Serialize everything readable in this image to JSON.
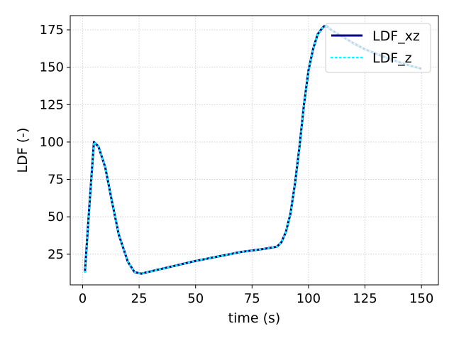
{
  "chart_data": {
    "type": "line",
    "xlabel": "time (s)",
    "ylabel": "LDF (-)",
    "xlim": [
      -5.5,
      157.5
    ],
    "ylim": [
      4.5,
      184.5
    ],
    "xticks": [
      0,
      25,
      50,
      75,
      100,
      125,
      150
    ],
    "yticks": [
      25,
      50,
      75,
      100,
      125,
      150,
      175
    ],
    "grid": true,
    "legend_position": "upper-right",
    "series": [
      {
        "name": "LDF_xz",
        "color": "#00007f",
        "style": "solid",
        "x": [
          1,
          3,
          5,
          7,
          10,
          13,
          16,
          20,
          23,
          26,
          30,
          40,
          50,
          60,
          70,
          80,
          86,
          88,
          90,
          92,
          94,
          96,
          98,
          100,
          102,
          104,
          106,
          107,
          108,
          110,
          115,
          120,
          125,
          130,
          135,
          140,
          145,
          150
        ],
        "y": [
          13,
          58,
          100,
          97,
          83,
          60,
          38,
          20,
          13,
          12,
          13.5,
          17,
          20.5,
          23.5,
          26.5,
          28.5,
          30,
          33,
          40,
          52,
          72,
          97,
          125,
          148,
          162,
          172,
          176,
          177.5,
          177.5,
          175,
          170.5,
          166,
          162,
          159,
          156,
          153.5,
          151,
          149
        ]
      },
      {
        "name": "LDF_z",
        "color": "#00ffff",
        "style": "dotted",
        "x": [
          1,
          3,
          5,
          7,
          10,
          13,
          16,
          20,
          23,
          26,
          30,
          40,
          50,
          60,
          70,
          80,
          86,
          88,
          90,
          92,
          94,
          96,
          98,
          100,
          102,
          104,
          106,
          107,
          108,
          110,
          115,
          120,
          125,
          130,
          135,
          140,
          145,
          150
        ],
        "y": [
          13,
          58,
          100,
          97,
          83,
          60,
          38,
          20,
          13,
          12,
          13.5,
          17,
          20.5,
          23.5,
          26.5,
          28.5,
          30,
          33,
          40,
          52,
          72,
          97,
          125,
          148,
          162,
          172,
          176,
          177.5,
          177.5,
          175,
          170.5,
          166,
          162,
          159,
          156,
          153.5,
          151,
          149
        ]
      }
    ]
  }
}
